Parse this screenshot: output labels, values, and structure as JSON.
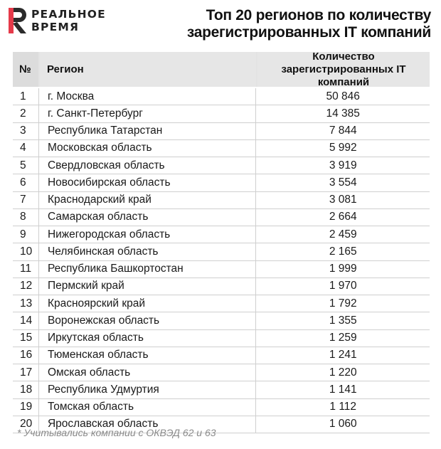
{
  "brand": {
    "line1": "РЕАЛЬНОЕ",
    "line2": "ВРЕМЯ",
    "accent": "#e53a4a"
  },
  "title": {
    "line1": "Топ 20 регионов по количеству",
    "line2": "зарегистрированных IT компаний"
  },
  "table": {
    "headers": {
      "num": "№",
      "region": "Регион",
      "count": "Количество зарегистрированных IT компаний"
    },
    "rows": [
      {
        "num": "1",
        "region": "г. Москва",
        "count": "50 846"
      },
      {
        "num": "2",
        "region": "г. Санкт-Петербург",
        "count": "14 385"
      },
      {
        "num": "3",
        "region": "Республика Татарстан",
        "count": "7 844"
      },
      {
        "num": "4",
        "region": "Московская область",
        "count": "5 992"
      },
      {
        "num": "5",
        "region": "Свердловская область",
        "count": "3 919"
      },
      {
        "num": "6",
        "region": "Новосибирская область",
        "count": "3 554"
      },
      {
        "num": "7",
        "region": "Краснодарский край",
        "count": "3 081"
      },
      {
        "num": "8",
        "region": "Самарская область",
        "count": "2 664"
      },
      {
        "num": "9",
        "region": "Нижегородская область",
        "count": "2 459"
      },
      {
        "num": "10",
        "region": "Челябинская область",
        "count": "2 165"
      },
      {
        "num": "11",
        "region": "Республика Башкортостан",
        "count": "1 999"
      },
      {
        "num": "12",
        "region": "Пермский край",
        "count": "1 970"
      },
      {
        "num": "13",
        "region": "Красноярский край",
        "count": "1 792"
      },
      {
        "num": "14",
        "region": "Воронежская область",
        "count": "1 355"
      },
      {
        "num": "15",
        "region": "Иркутская область",
        "count": "1 259"
      },
      {
        "num": "16",
        "region": "Тюменская область",
        "count": "1 241"
      },
      {
        "num": "17",
        "region": "Омская область",
        "count": "1 220"
      },
      {
        "num": "18",
        "region": "Республика Удмуртия",
        "count": "1 141"
      },
      {
        "num": "19",
        "region": "Томская область",
        "count": "1 112"
      },
      {
        "num": "20",
        "region": "Ярославская область",
        "count": "1 060"
      }
    ]
  },
  "footnote": "* Учитывались компании с ОКВЭД 62 и 63"
}
